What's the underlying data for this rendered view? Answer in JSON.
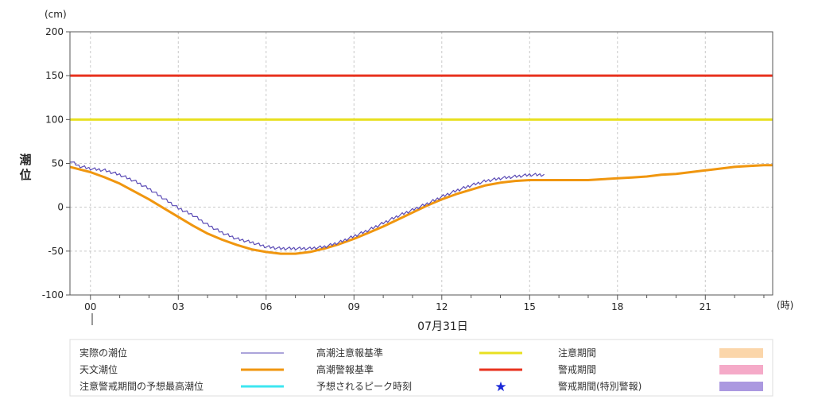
{
  "chart_data": {
    "type": "line",
    "title": "",
    "y_unit": "(cm)",
    "x_unit": "(時)",
    "ylabel": [
      "潮",
      "位"
    ],
    "date_label": "07月31日",
    "ylim": [
      -100,
      200
    ],
    "yticks": [
      -100,
      -50,
      0,
      50,
      100,
      150,
      200
    ],
    "xlim": [
      -0.7,
      23.3
    ],
    "xticks": [
      {
        "hour": 0,
        "label": "00"
      },
      {
        "hour": 3,
        "label": "03"
      },
      {
        "hour": 6,
        "label": "06"
      },
      {
        "hour": 9,
        "label": "09"
      },
      {
        "hour": 12,
        "label": "12"
      },
      {
        "hour": 15,
        "label": "15"
      },
      {
        "hour": 18,
        "label": "18"
      },
      {
        "hour": 21,
        "label": "21"
      }
    ],
    "grid": true,
    "series": [
      {
        "name": "実際の潮位",
        "color": "#5a4ab5",
        "x": [
          -0.7,
          -0.4,
          0,
          0.5,
          1,
          1.5,
          2,
          2.5,
          3,
          3.5,
          4,
          4.5,
          5,
          5.5,
          6,
          6.5,
          7,
          7.5,
          8,
          8.5,
          9,
          9.5,
          10,
          10.5,
          11,
          11.5,
          12,
          12.5,
          13,
          13.5,
          14,
          14.5,
          15,
          15.5
        ],
        "y": [
          53,
          47,
          44,
          42,
          37,
          30,
          21,
          10,
          -1,
          -9,
          -20,
          -29,
          -36,
          -40,
          -45,
          -47,
          -47,
          -47,
          -45,
          -40,
          -33,
          -26,
          -18,
          -10,
          -3,
          4,
          12,
          19,
          25,
          30,
          33,
          35,
          37,
          37
        ]
      },
      {
        "name": "天文潮位",
        "color": "#f0960f",
        "x": [
          -0.7,
          0,
          0.5,
          1,
          1.5,
          2,
          2.5,
          3,
          3.5,
          4,
          4.5,
          5,
          5.5,
          6,
          6.5,
          7,
          7.5,
          8,
          8.5,
          9,
          9.5,
          10,
          10.5,
          11,
          11.5,
          12,
          12.5,
          13,
          13.5,
          14,
          14.5,
          15,
          15.5,
          16,
          16.5,
          17,
          17.5,
          18,
          18.5,
          19,
          19.5,
          20,
          20.5,
          21,
          21.5,
          22,
          22.5,
          23,
          23.3
        ],
        "y": [
          46,
          40,
          34,
          27,
          18,
          9,
          -1,
          -11,
          -21,
          -30,
          -37,
          -43,
          -48,
          -51,
          -53,
          -53,
          -51,
          -47,
          -42,
          -36,
          -29,
          -22,
          -14,
          -6,
          2,
          9,
          15,
          20,
          25,
          28,
          30,
          31,
          31,
          31,
          31,
          31,
          32,
          33,
          34,
          35,
          37,
          38,
          40,
          42,
          44,
          46,
          47,
          48,
          48
        ]
      },
      {
        "name": "高潮注意報基準",
        "color": "#e8e020",
        "level": 100
      },
      {
        "name": "高潮警報基準",
        "color": "#e8321e",
        "level": 150
      }
    ],
    "legend": {
      "placement": "bottom",
      "rows": [
        [
          {
            "label": "実際の潮位",
            "kind": "line",
            "color": "#5a4ab5",
            "width": 1
          },
          {
            "label": "高潮注意報基準",
            "kind": "line",
            "color": "#e8e020",
            "width": 3
          },
          {
            "label": "注意期間",
            "kind": "box",
            "color": "#fbd6aa"
          }
        ],
        [
          {
            "label": "天文潮位",
            "kind": "line",
            "color": "#f0960f",
            "width": 3
          },
          {
            "label": "高潮警報基準",
            "kind": "line",
            "color": "#e8321e",
            "width": 3
          },
          {
            "label": "警戒期間",
            "kind": "box",
            "color": "#f5aac8"
          }
        ],
        [
          {
            "label": "注意警戒期間の予想最高潮位",
            "kind": "line",
            "color": "#3de6f0",
            "width": 3
          },
          {
            "label": "予想されるピーク時刻",
            "kind": "star",
            "color": "#1a28d8"
          },
          {
            "label": "警戒期間(特別警報)",
            "kind": "box",
            "color": "#ab99e0"
          }
        ]
      ]
    }
  }
}
